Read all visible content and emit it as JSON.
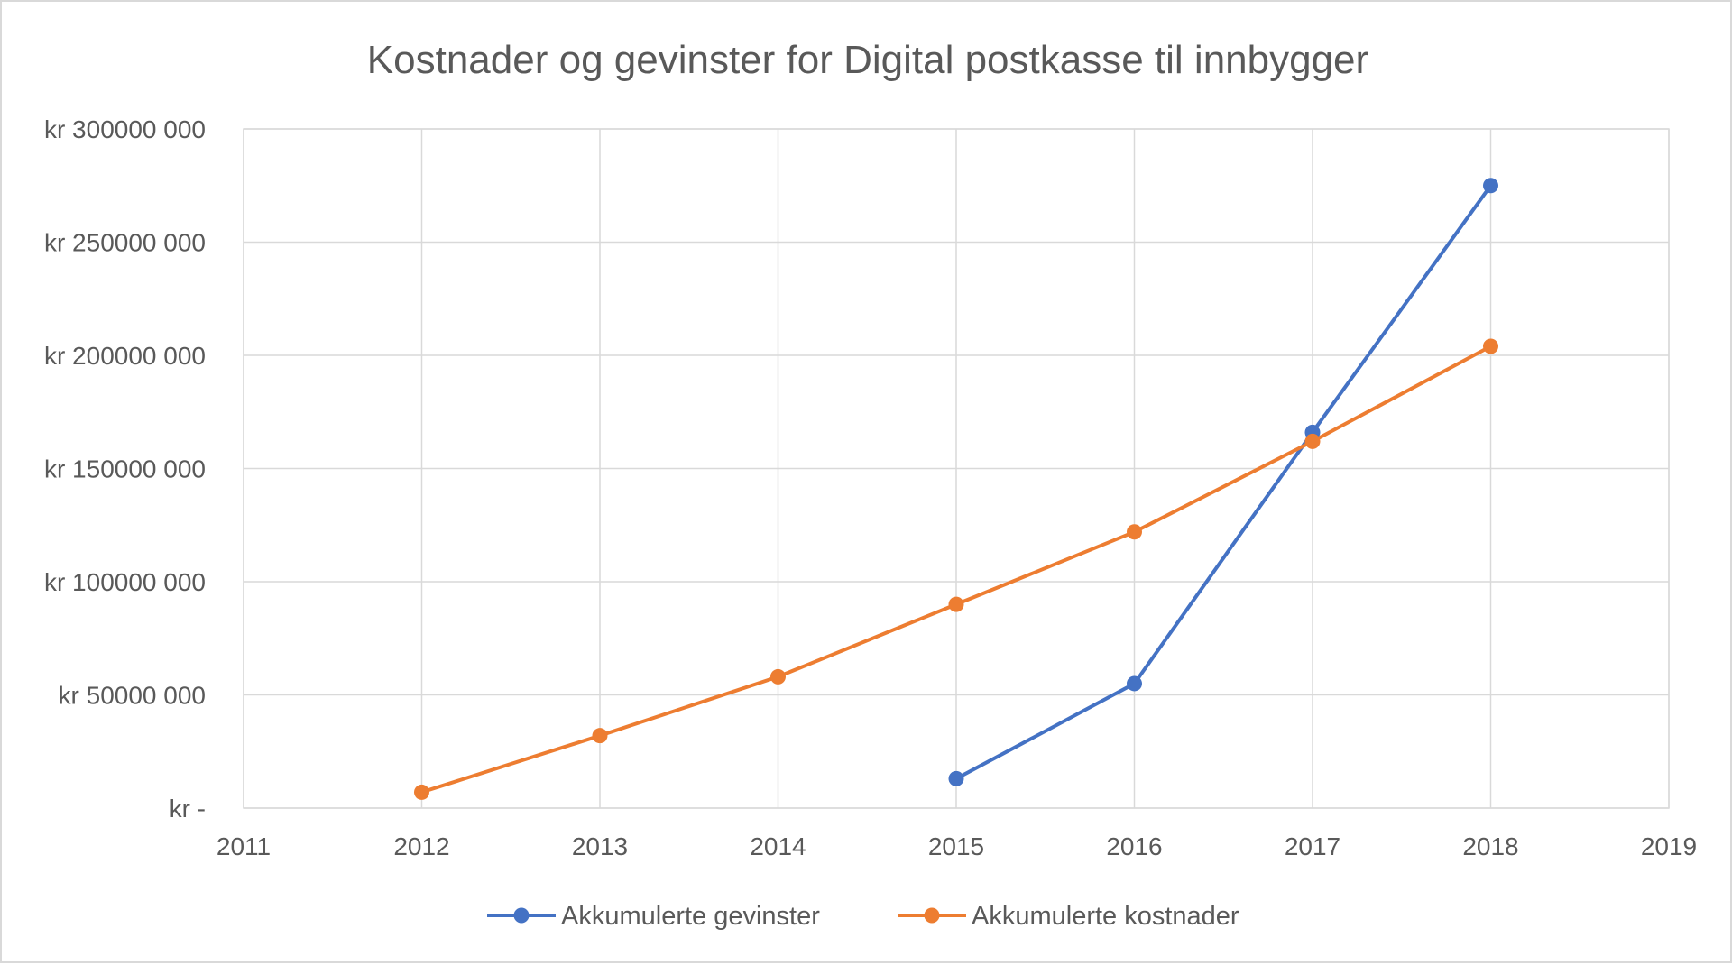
{
  "chart_data": {
    "type": "line",
    "title": "Kostnader og gevinster for Digital postkasse til innbygger",
    "xlabel": "",
    "ylabel": "",
    "xlim": [
      2011,
      2019
    ],
    "ylim": [
      0,
      300000000
    ],
    "x_ticks": [
      2011,
      2012,
      2013,
      2014,
      2015,
      2016,
      2017,
      2018,
      2019
    ],
    "x_tick_labels": [
      "2011",
      "2012",
      "2013",
      "2014",
      "2015",
      "2016",
      "2017",
      "2018",
      "2019"
    ],
    "y_ticks": [
      0,
      50000000,
      100000000,
      150000000,
      200000000,
      250000000,
      300000000
    ],
    "y_tick_labels": [
      "kr -",
      "kr 50000 000",
      "kr 100000 000",
      "kr 150000 000",
      "kr 200000 000",
      "kr 250000 000",
      "kr 300000 000"
    ],
    "grid": true,
    "legend_position": "bottom",
    "series": [
      {
        "name": "Akkumulerte gevinster",
        "color": "#4472c4",
        "x": [
          2015,
          2016,
          2017,
          2018
        ],
        "values": [
          13000000,
          55000000,
          166000000,
          275000000
        ]
      },
      {
        "name": "Akkumulerte kostnader",
        "color": "#ed7d31",
        "x": [
          2012,
          2013,
          2014,
          2015,
          2016,
          2017,
          2018
        ],
        "values": [
          7000000,
          32000000,
          58000000,
          90000000,
          122000000,
          162000000,
          204000000
        ]
      }
    ]
  }
}
